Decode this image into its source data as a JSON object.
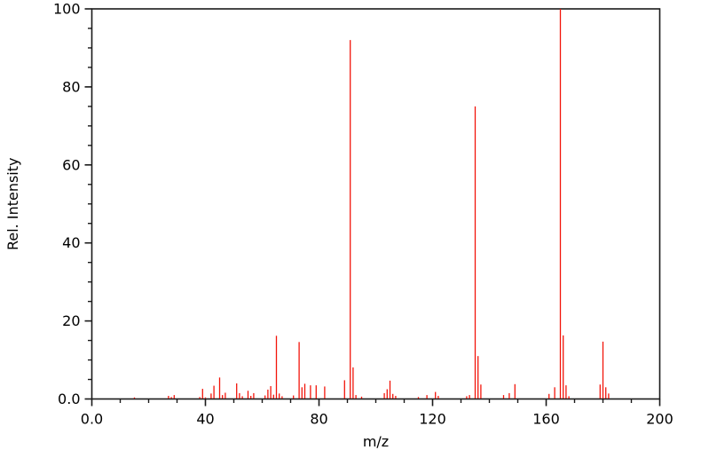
{
  "figure": {
    "background_color": "#ffffff",
    "axis_color": "#1a1a1a",
    "peak_color": "#f2140a"
  },
  "chart_data": {
    "type": "bar",
    "subtype": "mass-spectrum-stick-plot",
    "title": "",
    "xlabel": "m/z",
    "ylabel": "Rel. Intensity",
    "xlim": [
      0,
      200
    ],
    "ylim": [
      0,
      100
    ],
    "grid": false,
    "legend": "none",
    "x_major_ticks": [
      {
        "value": 0,
        "label": "0.0"
      },
      {
        "value": 40,
        "label": "40"
      },
      {
        "value": 80,
        "label": "80"
      },
      {
        "value": 120,
        "label": "120"
      },
      {
        "value": 160,
        "label": "160"
      },
      {
        "value": 200,
        "label": "200"
      }
    ],
    "y_major_ticks": [
      {
        "value": 0,
        "label": "0.0"
      },
      {
        "value": 20,
        "label": "20"
      },
      {
        "value": 40,
        "label": "40"
      },
      {
        "value": 60,
        "label": "60"
      },
      {
        "value": 80,
        "label": "80"
      },
      {
        "value": 100,
        "label": "100"
      }
    ],
    "x_minor_step": 10,
    "y_minor_step": 5,
    "peaks": [
      [
        15,
        0.4
      ],
      [
        27,
        0.8
      ],
      [
        28,
        0.5
      ],
      [
        29,
        1.0
      ],
      [
        38,
        0.5
      ],
      [
        39,
        2.6
      ],
      [
        40,
        0.4
      ],
      [
        42,
        1.4
      ],
      [
        43,
        3.4
      ],
      [
        45,
        5.5
      ],
      [
        46,
        1.0
      ],
      [
        47,
        1.6
      ],
      [
        51,
        4.0
      ],
      [
        52,
        1.5
      ],
      [
        53,
        0.7
      ],
      [
        55,
        2.1
      ],
      [
        56,
        0.8
      ],
      [
        57,
        1.5
      ],
      [
        61,
        0.9
      ],
      [
        62,
        2.4
      ],
      [
        63,
        3.3
      ],
      [
        64,
        1.1
      ],
      [
        65,
        16.2
      ],
      [
        66,
        1.4
      ],
      [
        67,
        0.7
      ],
      [
        71,
        0.9
      ],
      [
        73,
        14.6
      ],
      [
        74,
        3.0
      ],
      [
        75,
        3.9
      ],
      [
        77,
        3.5
      ],
      [
        79,
        3.5
      ],
      [
        82,
        3.2
      ],
      [
        89,
        4.8
      ],
      [
        91,
        92.0
      ],
      [
        92,
        8.1
      ],
      [
        93,
        1.0
      ],
      [
        95,
        0.6
      ],
      [
        103,
        1.5
      ],
      [
        104,
        2.5
      ],
      [
        105,
        4.7
      ],
      [
        106,
        1.3
      ],
      [
        107,
        0.8
      ],
      [
        115,
        0.5
      ],
      [
        118,
        1.0
      ],
      [
        121,
        1.8
      ],
      [
        122,
        0.8
      ],
      [
        132,
        0.7
      ],
      [
        133,
        1.0
      ],
      [
        135,
        75.0
      ],
      [
        136,
        11.0
      ],
      [
        137,
        3.7
      ],
      [
        145,
        1.0
      ],
      [
        147,
        1.5
      ],
      [
        149,
        3.8
      ],
      [
        161,
        1.3
      ],
      [
        163,
        3.0
      ],
      [
        165,
        100.0
      ],
      [
        166,
        16.3
      ],
      [
        167,
        3.5
      ],
      [
        168,
        0.7
      ],
      [
        179,
        3.7
      ],
      [
        180,
        14.7
      ],
      [
        181,
        3.0
      ],
      [
        182,
        1.4
      ]
    ]
  }
}
